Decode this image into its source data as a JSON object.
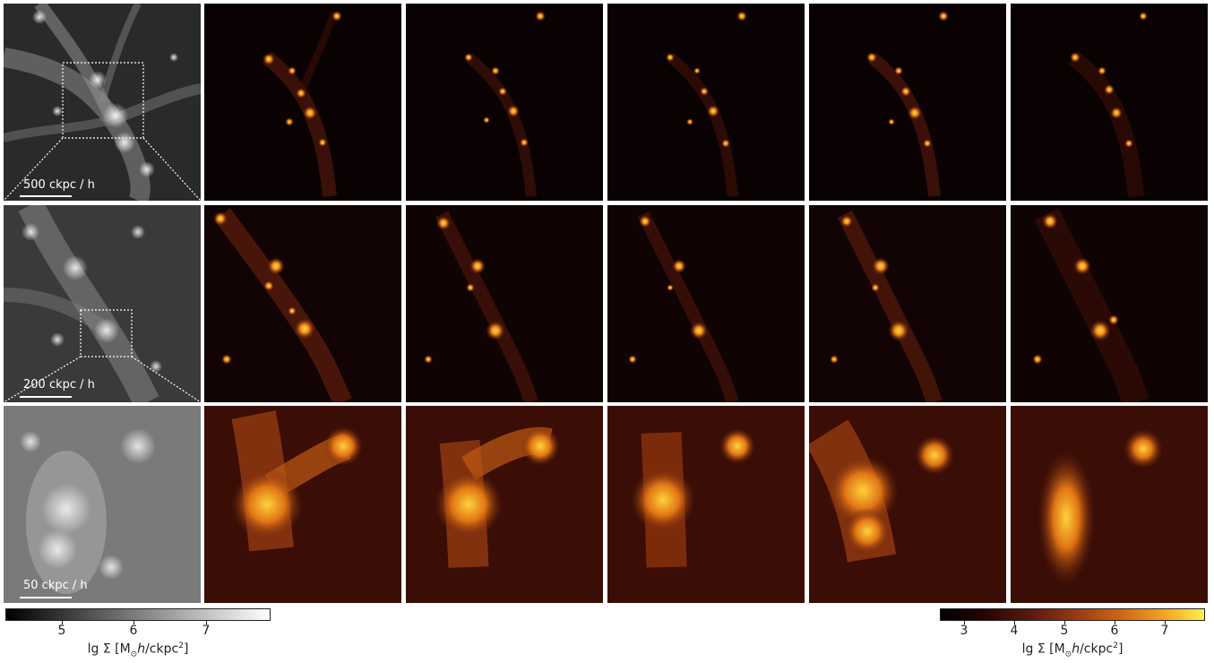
{
  "figure": {
    "rows": [
      {
        "scale_label": "500 ckpc / h"
      },
      {
        "scale_label": "200 ckpc / h"
      },
      {
        "scale_label": "50 ckpc / h"
      }
    ],
    "colorbar_left": {
      "ticks": [
        "5",
        "6",
        "7"
      ],
      "label_prefix": "lg Σ [M",
      "label_sub": "⊙",
      "label_italic": "h",
      "label_mid": "/ckpc",
      "label_sup": "2",
      "label_suffix": "]",
      "colormap": "gray"
    },
    "colorbar_right": {
      "ticks": [
        "3",
        "4",
        "5",
        "6",
        "7"
      ],
      "label_prefix": "lg Σ [M",
      "label_sub": "⊙",
      "label_italic": "h",
      "label_mid": "/ckpc",
      "label_sup": "2",
      "label_suffix": "]",
      "colormap": "afmhot"
    }
  }
}
